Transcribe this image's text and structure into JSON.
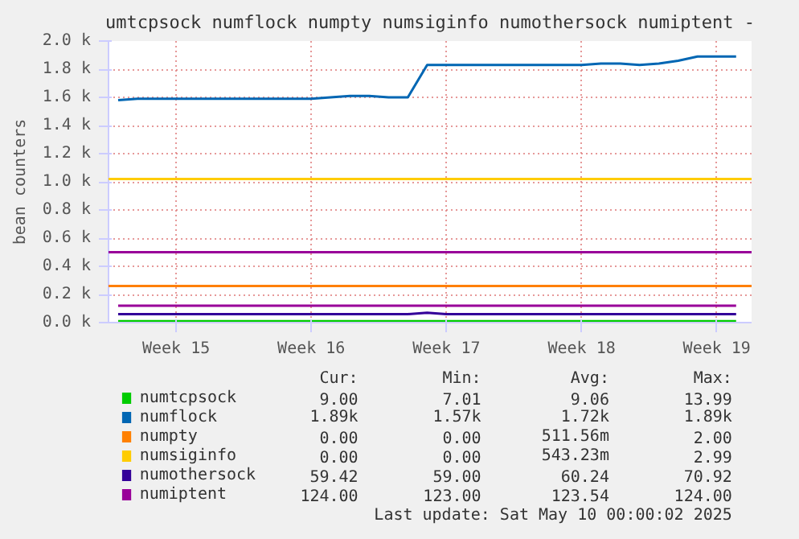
{
  "chart_data": {
    "type": "line",
    "title": "umtcpsock numflock numpty numsiginfo numothersock numiptent -",
    "ylabel": "bean counters",
    "categories": [
      null,
      null,
      null,
      "Week 15",
      null,
      null,
      null,
      null,
      null,
      null,
      "Week 16",
      null,
      null,
      null,
      null,
      null,
      null,
      "Week 17",
      null,
      null,
      null,
      null,
      null,
      null,
      "Week 18",
      null,
      null,
      null,
      null,
      null,
      null,
      "Week 19",
      null
    ],
    "ylim": [
      0,
      2000
    ],
    "yticks": [
      {
        "value": 0,
        "label": "0.0 k"
      },
      {
        "value": 200,
        "label": "0.2 k"
      },
      {
        "value": 400,
        "label": "0.4 k"
      },
      {
        "value": 600,
        "label": "0.6 k"
      },
      {
        "value": 800,
        "label": "0.8 k"
      },
      {
        "value": 1000,
        "label": "1.0 k"
      },
      {
        "value": 1200,
        "label": "1.2 k"
      },
      {
        "value": 1400,
        "label": "1.4 k"
      },
      {
        "value": 1600,
        "label": "1.6 k"
      },
      {
        "value": 1800,
        "label": "1.8 k"
      },
      {
        "value": 2000,
        "label": "2.0 k"
      }
    ],
    "grid": true,
    "legend": "bottom",
    "series": [
      {
        "name": "numtcpsock",
        "color": "#00cc00",
        "values": [
          10,
          10,
          10,
          10,
          10,
          10,
          10,
          10,
          10,
          10,
          10,
          10,
          10,
          10,
          10,
          10,
          10,
          10,
          10,
          10,
          10,
          10,
          10,
          10,
          10,
          10,
          10,
          10,
          10,
          10,
          10,
          10,
          10
        ]
      },
      {
        "name": "numflock",
        "color": "#0066b3",
        "values": [
          1580,
          1590,
          1590,
          1590,
          1590,
          1590,
          1590,
          1590,
          1590,
          1590,
          1590,
          1600,
          1610,
          1610,
          1600,
          1600,
          1830,
          1830,
          1830,
          1830,
          1830,
          1830,
          1830,
          1830,
          1830,
          1840,
          1840,
          1830,
          1840,
          1860,
          1890,
          1890,
          1890
        ]
      },
      {
        "name": "numpty",
        "color": "#ff8000",
        "values": [
          null,
          null,
          null,
          null,
          null,
          null,
          null,
          null,
          null,
          null,
          null,
          null,
          null,
          null,
          null,
          null,
          null,
          null,
          null,
          null,
          null,
          null,
          null,
          null,
          null,
          null,
          null,
          null,
          null,
          null,
          null,
          null,
          null
        ]
      },
      {
        "name": "numsiginfo",
        "color": "#ffcc00",
        "values": [
          null,
          null,
          null,
          null,
          null,
          null,
          null,
          null,
          null,
          null,
          null,
          null,
          null,
          null,
          null,
          null,
          null,
          null,
          null,
          null,
          null,
          null,
          null,
          null,
          null,
          null,
          null,
          null,
          null,
          null,
          null,
          null,
          null
        ]
      },
      {
        "name": "numothersock",
        "color": "#330099",
        "values": [
          60,
          60,
          60,
          60,
          60,
          60,
          60,
          60,
          60,
          60,
          60,
          60,
          60,
          60,
          60,
          60,
          70,
          60,
          60,
          60,
          60,
          60,
          60,
          60,
          60,
          60,
          60,
          60,
          60,
          60,
          60,
          60,
          60
        ]
      },
      {
        "name": "numiptent",
        "color": "#990099",
        "values": [
          120,
          120,
          120,
          120,
          120,
          120,
          120,
          120,
          120,
          120,
          120,
          120,
          120,
          120,
          120,
          120,
          120,
          120,
          120,
          120,
          120,
          120,
          120,
          120,
          120,
          120,
          120,
          120,
          120,
          120,
          120,
          120,
          120
        ]
      }
    ],
    "ref_lines": [
      {
        "axis": "y",
        "value": 1020,
        "color": "#ffcc00"
      },
      {
        "axis": "y",
        "value": 500,
        "color": "#990099"
      },
      {
        "axis": "y",
        "value": 260,
        "color": "#ff8000"
      }
    ],
    "annotations": [
      "Cur:",
      "Min:",
      "Avg:",
      "Max:",
      "9.00",
      "7.01",
      "9.06",
      "13.99",
      "1.89k",
      "1.57k",
      "1.72k",
      "1.89k",
      "0.00",
      "0.00",
      "511.56m",
      "2.00",
      "0.00",
      "0.00",
      "543.23m",
      "2.99",
      "59.42",
      "59.00",
      "60.24",
      "70.92",
      "124.00",
      "123.00",
      "123.54",
      "124.00",
      "Last update: Sat May 10 00:00:02 2025"
    ]
  }
}
